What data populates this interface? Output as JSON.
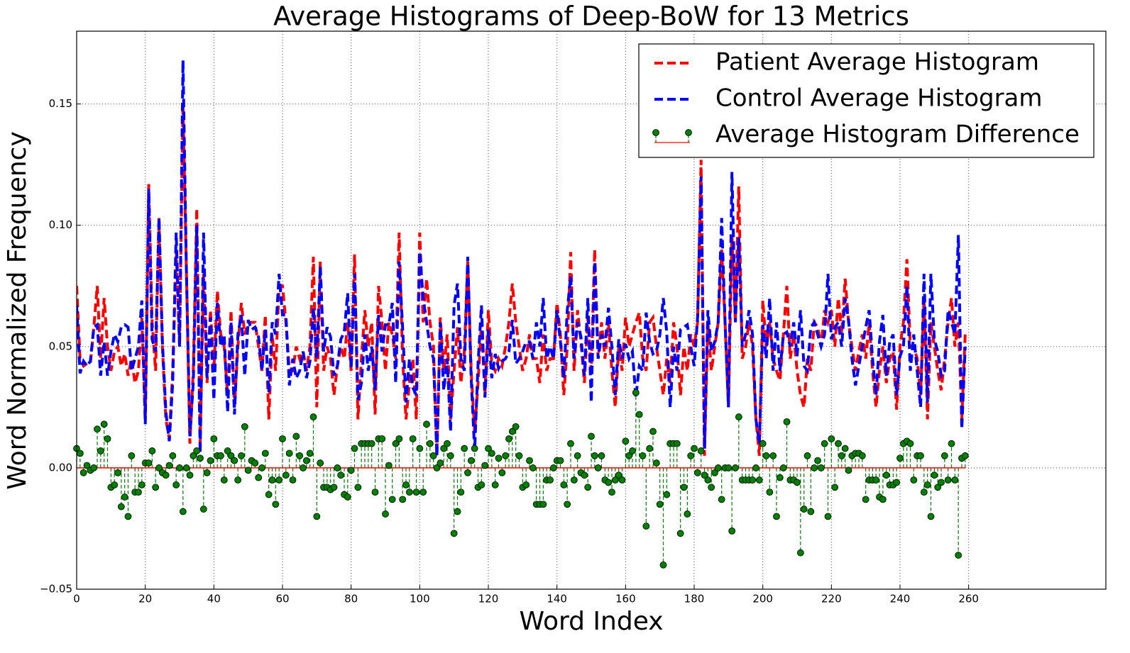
{
  "chart_data": {
    "type": "line",
    "title": "Average Histograms of Deep-BoW for 13 Metrics",
    "xlabel": "Word Index",
    "ylabel": "Word Normalized Frequency",
    "xlim": [
      0,
      300
    ],
    "ylim": [
      -0.05,
      0.18
    ],
    "xticks": [
      0,
      20,
      40,
      60,
      80,
      100,
      120,
      140,
      160,
      180,
      200,
      220,
      240,
      260
    ],
    "yticks": [
      {
        "value": -0.05,
        "label": "−0.05"
      },
      {
        "value": 0,
        "label": "0.00"
      },
      {
        "value": 0.05,
        "label": "0.05"
      },
      {
        "value": 0.1,
        "label": "0.10"
      },
      {
        "value": 0.15,
        "label": "0.15"
      }
    ],
    "grid": true,
    "legend": "upper right",
    "x": [
      0,
      1,
      2,
      3,
      4,
      5,
      6,
      7,
      8,
      9,
      10,
      11,
      12,
      13,
      14,
      15,
      16,
      17,
      18,
      19,
      20,
      21,
      22,
      23,
      24,
      25,
      26,
      27,
      28,
      29,
      30,
      31,
      32,
      33,
      34,
      35,
      36,
      37,
      38,
      39,
      40,
      41,
      42,
      43,
      44,
      45,
      46,
      47,
      48,
      49,
      50,
      51,
      52,
      53,
      54,
      55,
      56,
      57,
      58,
      59,
      60,
      61,
      62,
      63,
      64,
      65,
      66,
      67,
      68,
      69,
      70,
      71,
      72,
      73,
      74,
      75,
      76,
      77,
      78,
      79,
      80,
      81,
      82,
      83,
      84,
      85,
      86,
      87,
      88,
      89,
      90,
      91,
      92,
      93,
      94,
      95,
      96,
      97,
      98,
      99,
      100,
      101,
      102,
      103,
      104,
      105,
      106,
      107,
      108,
      109,
      110,
      111,
      112,
      113,
      114,
      115,
      116,
      117,
      118,
      119,
      120,
      121,
      122,
      123,
      124,
      125,
      126,
      127,
      128,
      129,
      130,
      131,
      132,
      133,
      134,
      135,
      136,
      137,
      138,
      139,
      140,
      141,
      142,
      143,
      144,
      145,
      146,
      147,
      148,
      149,
      150,
      151,
      152,
      153,
      154,
      155,
      156,
      157,
      158,
      159,
      160,
      161,
      162,
      163,
      164,
      165,
      166,
      167,
      168,
      169,
      170,
      171,
      172,
      173,
      174,
      175,
      176,
      177,
      178,
      179,
      180,
      181,
      182,
      183,
      184,
      185,
      186,
      187,
      188,
      189,
      190,
      191,
      192,
      193,
      194,
      195,
      196,
      197,
      198,
      199,
      200,
      201,
      202,
      203,
      204,
      205,
      206,
      207,
      208,
      209,
      210,
      211,
      212,
      213,
      214,
      215,
      216,
      217,
      218,
      219,
      220,
      221,
      222,
      223,
      224,
      225,
      226,
      227,
      228,
      229,
      230,
      231,
      232,
      233,
      234,
      235,
      236,
      237,
      238,
      239,
      240,
      241,
      242,
      243,
      244,
      245,
      246,
      247,
      248,
      249,
      250,
      251,
      252,
      253,
      254,
      255,
      256,
      257,
      258,
      259
    ],
    "series": [
      {
        "name": "Patient Average Histogram",
        "type": "line",
        "color": "#ff0000",
        "values": [
          0.075,
          0.045,
          0.042,
          0.043,
          0.043,
          0.058,
          0.075,
          0.045,
          0.07,
          0.05,
          0.04,
          0.048,
          0.05,
          0.042,
          0.047,
          0.038,
          0.045,
          0.035,
          0.04,
          0.062,
          0.02,
          0.117,
          0.06,
          0.04,
          0.103,
          0.05,
          0.02,
          0.012,
          0.04,
          0.09,
          0.05,
          0.15,
          0.08,
          0.01,
          0.04,
          0.107,
          0.01,
          0.08,
          0.035,
          0.065,
          0.04,
          0.073,
          0.055,
          0.05,
          0.03,
          0.065,
          0.025,
          0.05,
          0.068,
          0.055,
          0.06,
          0.06,
          0.06,
          0.05,
          0.04,
          0.063,
          0.02,
          0.055,
          0.04,
          0.075,
          0.075,
          0.06,
          0.04,
          0.04,
          0.05,
          0.045,
          0.048,
          0.04,
          0.05,
          0.087,
          0.025,
          0.085,
          0.04,
          0.05,
          0.045,
          0.03,
          0.042,
          0.05,
          0.045,
          0.06,
          0.04,
          0.088,
          0.02,
          0.045,
          0.065,
          0.05,
          0.06,
          0.022,
          0.075,
          0.06,
          0.04,
          0.06,
          0.055,
          0.045,
          0.097,
          0.045,
          0.02,
          0.035,
          0.045,
          0.02,
          0.097,
          0.06,
          0.078,
          0.06,
          0.05,
          0.005,
          0.062,
          0.04,
          0.055,
          0.02,
          0.04,
          0.058,
          0.035,
          0.048,
          0.085,
          0.04,
          0.015,
          0.035,
          0.06,
          0.03,
          0.065,
          0.043,
          0.04,
          0.045,
          0.042,
          0.05,
          0.06,
          0.076,
          0.06,
          0.05,
          0.04,
          0.045,
          0.055,
          0.045,
          0.045,
          0.035,
          0.055,
          0.04,
          0.045,
          0.045,
          0.068,
          0.055,
          0.03,
          0.05,
          0.089,
          0.04,
          0.065,
          0.052,
          0.035,
          0.062,
          0.04,
          0.09,
          0.045,
          0.06,
          0.045,
          0.06,
          0.04,
          0.025,
          0.05,
          0.04,
          0.062,
          0.05,
          0.055,
          0.06,
          0.064,
          0.045,
          0.04,
          0.06,
          0.062,
          0.05,
          0.04,
          0.03,
          0.045,
          0.035,
          0.06,
          0.05,
          0.03,
          0.05,
          0.04,
          0.055,
          0.05,
          0.06,
          0.127,
          0.005,
          0.06,
          0.04,
          0.05,
          0.06,
          0.09,
          0.06,
          0.025,
          0.096,
          0.06,
          0.116,
          0.045,
          0.05,
          0.06,
          0.05,
          0.02,
          0.005,
          0.069,
          0.05,
          0.06,
          0.045,
          0.04,
          0.036,
          0.055,
          0.075,
          0.045,
          0.055,
          0.04,
          0.03,
          0.025,
          0.045,
          0.04,
          0.06,
          0.058,
          0.05,
          0.065,
          0.06,
          0.065,
          0.05,
          0.07,
          0.055,
          0.078,
          0.06,
          0.05,
          0.04,
          0.048,
          0.055,
          0.045,
          0.06,
          0.04,
          0.025,
          0.04,
          0.05,
          0.035,
          0.045,
          0.048,
          0.024,
          0.05,
          0.06,
          0.086,
          0.05,
          0.05,
          0.045,
          0.03,
          0.07,
          0.02,
          0.06,
          0.05,
          0.04,
          0.032,
          0.045,
          0.06,
          0.07,
          0.05,
          0.06,
          0.02,
          0.055
        ]
      },
      {
        "name": "Control Average Histogram",
        "type": "line",
        "color": "#0000ff",
        "values": [
          0.067,
          0.039,
          0.044,
          0.042,
          0.044,
          0.058,
          0.059,
          0.038,
          0.052,
          0.038,
          0.048,
          0.055,
          0.052,
          0.058,
          0.059,
          0.058,
          0.04,
          0.045,
          0.05,
          0.069,
          0.018,
          0.115,
          0.053,
          0.048,
          0.103,
          0.052,
          0.023,
          0.011,
          0.035,
          0.097,
          0.05,
          0.168,
          0.08,
          0.013,
          0.035,
          0.1,
          0.006,
          0.097,
          0.037,
          0.062,
          0.028,
          0.068,
          0.05,
          0.055,
          0.023,
          0.06,
          0.022,
          0.055,
          0.063,
          0.038,
          0.061,
          0.057,
          0.058,
          0.054,
          0.04,
          0.057,
          0.031,
          0.06,
          0.055,
          0.08,
          0.063,
          0.063,
          0.034,
          0.045,
          0.037,
          0.04,
          0.048,
          0.037,
          0.044,
          0.066,
          0.045,
          0.083,
          0.048,
          0.058,
          0.054,
          0.038,
          0.042,
          0.053,
          0.056,
          0.072,
          0.041,
          0.08,
          0.028,
          0.035,
          0.055,
          0.04,
          0.05,
          0.032,
          0.063,
          0.048,
          0.059,
          0.059,
          0.068,
          0.035,
          0.085,
          0.058,
          0.027,
          0.045,
          0.033,
          0.03,
          0.089,
          0.07,
          0.06,
          0.05,
          0.045,
          0.005,
          0.06,
          0.032,
          0.045,
          0.015,
          0.067,
          0.076,
          0.045,
          0.04,
          0.087,
          0.037,
          0.007,
          0.043,
          0.067,
          0.029,
          0.057,
          0.037,
          0.047,
          0.041,
          0.044,
          0.045,
          0.048,
          0.061,
          0.043,
          0.045,
          0.048,
          0.052,
          0.052,
          0.045,
          0.06,
          0.05,
          0.07,
          0.045,
          0.05,
          0.045,
          0.065,
          0.052,
          0.037,
          0.065,
          0.079,
          0.045,
          0.06,
          0.054,
          0.038,
          0.07,
          0.027,
          0.085,
          0.045,
          0.055,
          0.05,
          0.066,
          0.05,
          0.03,
          0.053,
          0.045,
          0.051,
          0.045,
          0.048,
          0.029,
          0.042,
          0.04,
          0.064,
          0.052,
          0.047,
          0.048,
          0.055,
          0.07,
          0.056,
          0.025,
          0.05,
          0.04,
          0.057,
          0.058,
          0.059,
          0.05,
          0.042,
          0.062,
          0.12,
          0.008,
          0.065,
          0.048,
          0.052,
          0.06,
          0.103,
          0.06,
          0.025,
          0.122,
          0.06,
          0.095,
          0.05,
          0.055,
          0.065,
          0.055,
          0.02,
          0.01,
          0.059,
          0.045,
          0.07,
          0.04,
          0.06,
          0.04,
          0.055,
          0.056,
          0.05,
          0.06,
          0.046,
          0.065,
          0.042,
          0.04,
          0.058,
          0.06,
          0.055,
          0.05,
          0.055,
          0.08,
          0.053,
          0.058,
          0.06,
          0.05,
          0.07,
          0.061,
          0.045,
          0.034,
          0.042,
          0.05,
          0.058,
          0.065,
          0.045,
          0.03,
          0.052,
          0.063,
          0.038,
          0.052,
          0.055,
          0.03,
          0.046,
          0.05,
          0.075,
          0.04,
          0.055,
          0.04,
          0.025,
          0.08,
          0.027,
          0.08,
          0.053,
          0.048,
          0.038,
          0.04,
          0.065,
          0.06,
          0.055,
          0.096,
          0.016,
          0.05
        ]
      },
      {
        "name": "Average Histogram Difference",
        "type": "stem",
        "color": "#008000",
        "baseline_color": "#ff0000",
        "values": [
          0.008,
          0.006,
          -0.002,
          0.001,
          -0.001,
          0.0,
          0.016,
          0.007,
          0.018,
          0.012,
          -0.008,
          -0.007,
          -0.002,
          -0.016,
          -0.012,
          -0.02,
          0.005,
          -0.01,
          -0.01,
          -0.007,
          0.002,
          0.002,
          0.007,
          -0.008,
          0.0,
          -0.002,
          -0.003,
          0.001,
          0.005,
          -0.007,
          0.0,
          -0.018,
          0.0,
          -0.003,
          0.005,
          0.007,
          0.004,
          -0.017,
          -0.002,
          0.003,
          0.012,
          0.005,
          0.005,
          -0.005,
          0.007,
          0.005,
          0.003,
          -0.005,
          0.005,
          0.017,
          -0.001,
          0.003,
          0.002,
          -0.004,
          0.0,
          0.006,
          -0.011,
          -0.005,
          -0.015,
          -0.005,
          0.012,
          -0.003,
          0.006,
          -0.005,
          0.013,
          0.005,
          0.0,
          0.003,
          0.006,
          0.021,
          -0.02,
          0.002,
          -0.008,
          -0.008,
          -0.009,
          -0.008,
          0.0,
          -0.003,
          -0.011,
          -0.012,
          -0.001,
          0.008,
          -0.008,
          0.01,
          0.01,
          0.01,
          0.01,
          -0.01,
          0.012,
          0.012,
          -0.019,
          0.001,
          -0.013,
          0.01,
          0.012,
          -0.013,
          -0.007,
          -0.01,
          0.012,
          -0.01,
          0.008,
          -0.01,
          0.018,
          0.01,
          0.005,
          0.0,
          0.002,
          0.008,
          0.01,
          0.005,
          -0.027,
          -0.018,
          -0.01,
          0.008,
          -0.002,
          0.003,
          0.008,
          -0.008,
          -0.007,
          0.001,
          0.008,
          0.006,
          -0.007,
          0.004,
          -0.002,
          0.005,
          0.012,
          0.015,
          0.017,
          0.005,
          -0.008,
          -0.007,
          0.003,
          0.0,
          -0.015,
          -0.015,
          -0.015,
          -0.005,
          -0.005,
          0.0,
          0.003,
          0.003,
          -0.007,
          -0.015,
          0.01,
          -0.005,
          0.005,
          -0.002,
          -0.003,
          -0.008,
          0.013,
          0.005,
          0.0,
          0.005,
          -0.005,
          -0.006,
          -0.01,
          -0.005,
          -0.003,
          -0.005,
          0.011,
          0.005,
          0.007,
          0.031,
          0.022,
          0.005,
          -0.024,
          0.008,
          0.015,
          0.002,
          -0.015,
          -0.04,
          -0.011,
          0.01,
          0.01,
          0.01,
          -0.027,
          -0.008,
          -0.019,
          0.005,
          0.008,
          -0.002,
          0.007,
          -0.003,
          -0.005,
          -0.008,
          -0.002,
          0.0,
          -0.013,
          0.0,
          0.0,
          -0.026,
          0.0,
          0.021,
          -0.005,
          -0.005,
          -0.005,
          -0.005,
          0.0,
          -0.005,
          0.01,
          0.005,
          -0.01,
          0.005,
          -0.02,
          -0.004,
          0.0,
          0.019,
          -0.005,
          -0.005,
          -0.006,
          -0.035,
          -0.017,
          0.005,
          -0.018,
          0.0,
          0.003,
          0.0,
          0.01,
          -0.02,
          0.012,
          -0.008,
          0.01,
          0.005,
          0.008,
          -0.001,
          0.005,
          0.006,
          0.006,
          0.005,
          -0.013,
          -0.005,
          -0.005,
          -0.005,
          -0.012,
          -0.013,
          -0.003,
          -0.007,
          -0.007,
          -0.006,
          0.004,
          0.01,
          0.011,
          0.01,
          -0.005,
          0.005,
          0.005,
          -0.01,
          -0.007,
          -0.02,
          -0.003,
          -0.008,
          -0.006,
          0.005,
          -0.005,
          0.01,
          -0.005,
          -0.036,
          0.004,
          0.005
        ]
      }
    ]
  }
}
